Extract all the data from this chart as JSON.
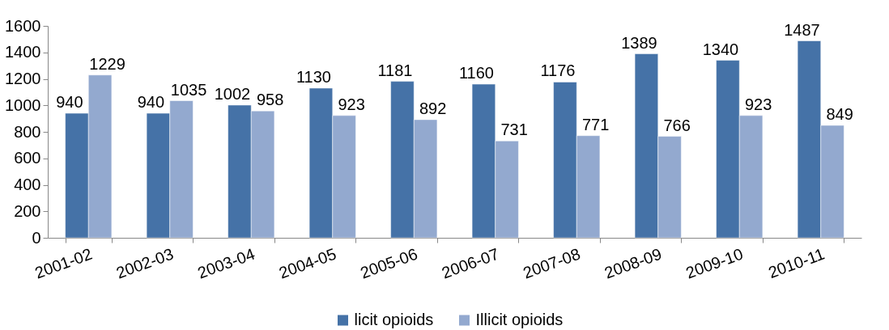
{
  "chart_data": {
    "type": "bar",
    "categories": [
      "2001-02",
      "2002-03",
      "2003-04",
      "2004-05",
      "2005-06",
      "2006-07",
      "2007-08",
      "2008-09",
      "2009-10",
      "2010-11"
    ],
    "series": [
      {
        "name": "licit opioids",
        "color": "#4572a7",
        "values": [
          940,
          940,
          1002,
          1130,
          1181,
          1160,
          1176,
          1389,
          1340,
          1487
        ]
      },
      {
        "name": "Illicit opioids",
        "color": "#93a9cf",
        "values": [
          1229,
          1035,
          958,
          923,
          892,
          731,
          771,
          766,
          923,
          849
        ]
      }
    ],
    "ylim": [
      0,
      1600
    ],
    "yticks": [
      0,
      200,
      400,
      600,
      800,
      1000,
      1200,
      1400,
      1600
    ],
    "data_labels": true,
    "legend": "bottom"
  }
}
